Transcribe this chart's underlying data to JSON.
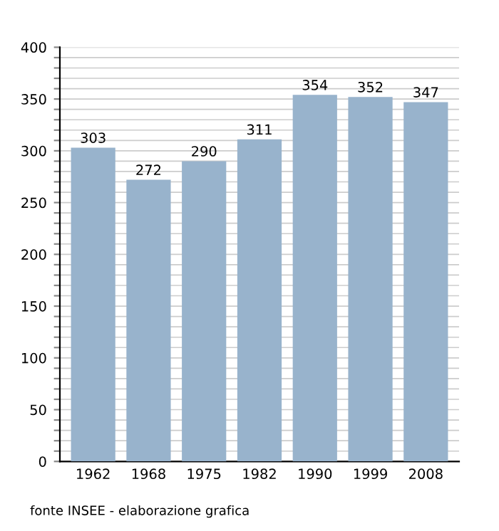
{
  "chart_data": {
    "type": "bar",
    "categories": [
      "1962",
      "1968",
      "1975",
      "1982",
      "1990",
      "1999",
      "2008"
    ],
    "values": [
      303,
      272,
      290,
      311,
      354,
      352,
      347
    ],
    "color": "#98b3cc",
    "data_labels": true,
    "ylim": [
      0,
      400
    ],
    "yticks": [
      0,
      {
        "value": 10,
        "label": null
      },
      {
        "value": 20,
        "label": null
      },
      {
        "value": 30,
        "label": null
      },
      {
        "value": 40,
        "label": null
      },
      50,
      {
        "value": 60,
        "label": null
      },
      {
        "value": 70,
        "label": null
      },
      {
        "value": 80,
        "label": null
      },
      {
        "value": 90,
        "label": null
      },
      100,
      {
        "value": 110,
        "label": null
      },
      {
        "value": 120,
        "label": null
      },
      {
        "value": 130,
        "label": null
      },
      {
        "value": 140,
        "label": null
      },
      150,
      {
        "value": 160,
        "label": null
      },
      {
        "value": 170,
        "label": null
      },
      {
        "value": 180,
        "label": null
      },
      {
        "value": 190,
        "label": null
      },
      200,
      {
        "value": 210,
        "label": null
      },
      {
        "value": 220,
        "label": null
      },
      {
        "value": 230,
        "label": null
      },
      {
        "value": 240,
        "label": null
      },
      250,
      {
        "value": 260,
        "label": null
      },
      {
        "value": 270,
        "label": null
      },
      {
        "value": 280,
        "label": null
      },
      {
        "value": 290,
        "label": null
      },
      300,
      {
        "value": 310,
        "label": null
      },
      {
        "value": 320,
        "label": null
      },
      {
        "value": 330,
        "label": null
      },
      {
        "value": 340,
        "label": null
      },
      350,
      {
        "value": 360,
        "label": null
      },
      {
        "value": 370,
        "label": null
      },
      {
        "value": 380,
        "label": null
      },
      {
        "value": 390,
        "label": null
      },
      400
    ],
    "grid": "y",
    "annotations": [
      "fonte INSEE - elaborazione grafica"
    ]
  }
}
